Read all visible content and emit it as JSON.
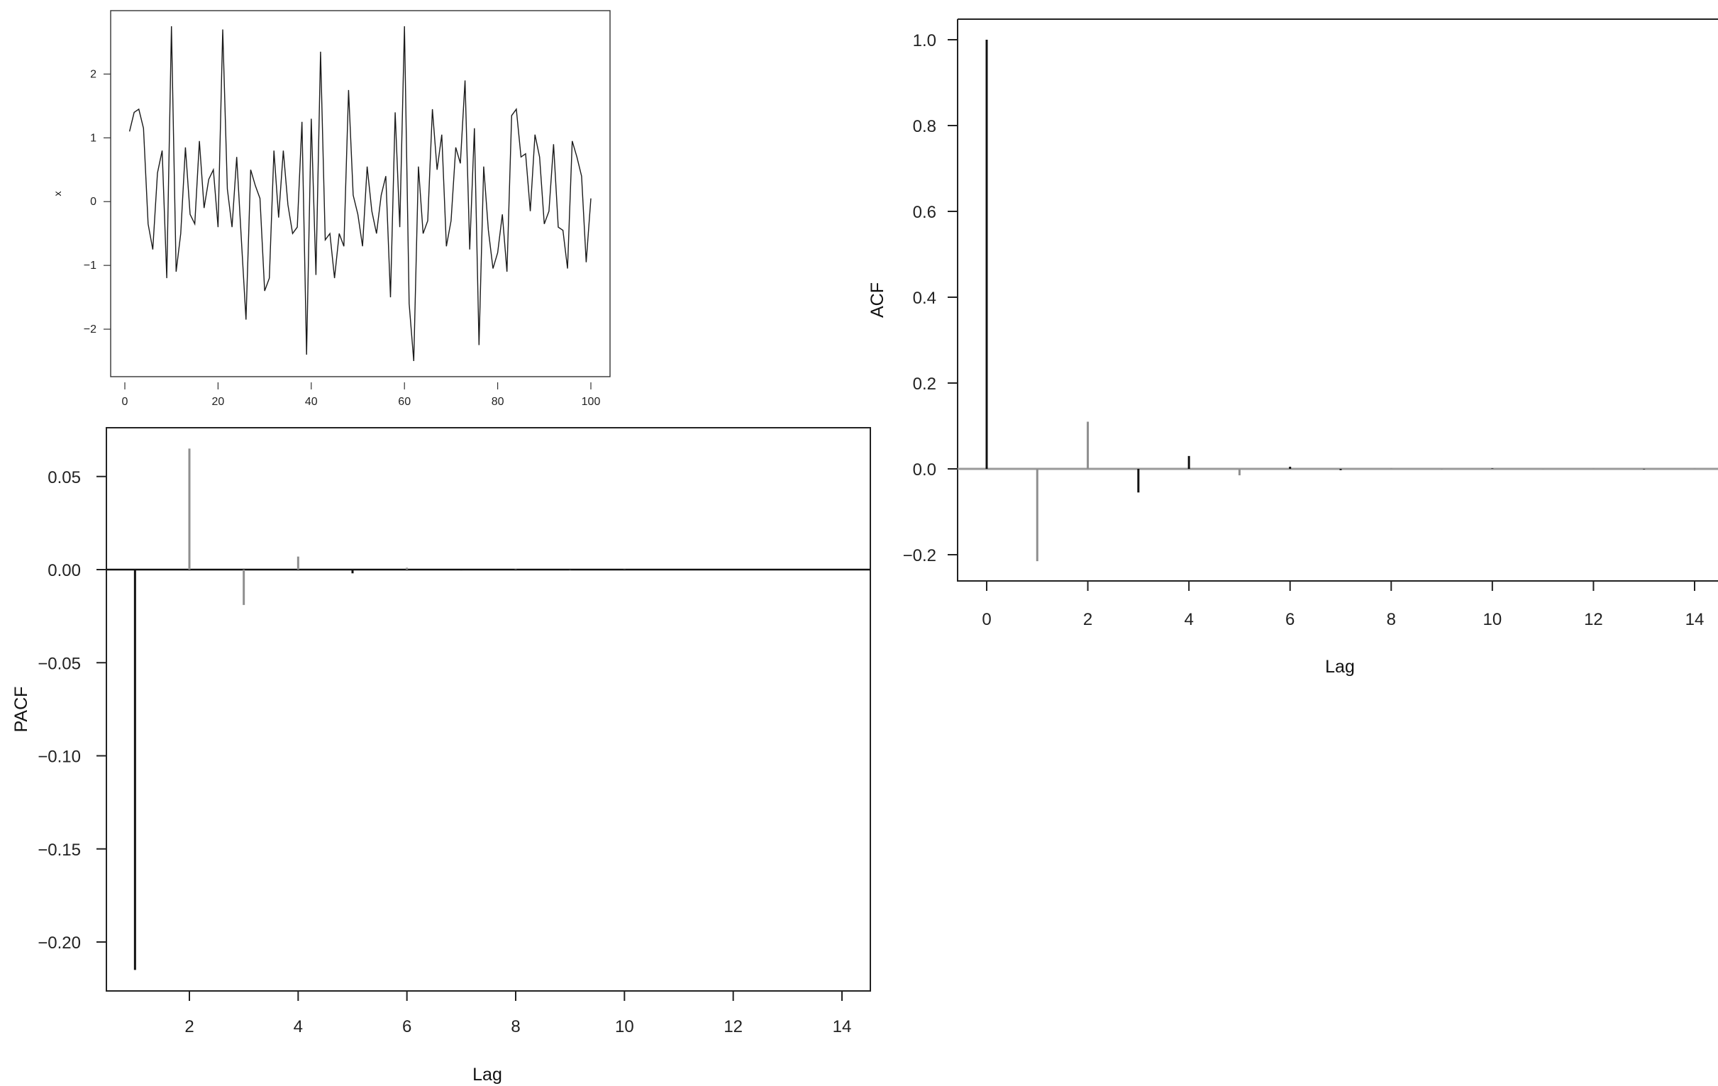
{
  "chart_data": [
    {
      "id": "series",
      "type": "line",
      "title": "",
      "xlabel": "",
      "ylabel": "x",
      "xlim": [
        0,
        100
      ],
      "ylim": [
        -2.7,
        2.95
      ],
      "xticks": [
        0,
        20,
        40,
        60,
        80,
        100
      ],
      "yticks": [
        -2,
        -1,
        0,
        1,
        2
      ],
      "grid": false,
      "line_color": "#1a1a1a",
      "x": [
        1,
        2,
        3,
        4,
        5,
        6,
        7,
        8,
        9,
        10,
        11,
        12,
        13,
        14,
        15,
        16,
        17,
        18,
        19,
        20,
        21,
        22,
        23,
        24,
        25,
        26,
        27,
        28,
        29,
        30,
        31,
        32,
        33,
        34,
        35,
        36,
        37,
        38,
        39,
        40,
        41,
        42,
        43,
        44,
        45,
        46,
        47,
        48,
        49,
        50,
        51,
        52,
        53,
        54,
        55,
        56,
        57,
        58,
        59,
        60,
        61,
        62,
        63,
        64,
        65,
        66,
        67,
        68,
        69,
        70,
        71,
        72,
        73,
        74,
        75,
        76,
        77,
        78,
        79,
        80,
        81,
        82,
        83,
        84,
        85,
        86,
        87,
        88,
        89,
        90,
        91,
        92,
        93,
        94,
        95,
        96,
        97,
        98,
        99,
        100
      ],
      "values": [
        1.1,
        1.4,
        1.45,
        1.15,
        -0.35,
        -0.75,
        0.45,
        0.8,
        -1.2,
        2.75,
        -1.1,
        -0.5,
        0.85,
        -0.2,
        -0.35,
        0.95,
        -0.1,
        0.35,
        0.5,
        -0.4,
        2.7,
        0.2,
        -0.4,
        0.7,
        -0.6,
        -1.85,
        0.5,
        0.25,
        0.05,
        -1.4,
        -1.2,
        0.8,
        -0.25,
        0.8,
        -0.05,
        -0.5,
        -0.4,
        1.25,
        -2.4,
        1.3,
        -1.15,
        2.35,
        -0.6,
        -0.5,
        -1.2,
        -0.5,
        -0.7,
        1.75,
        0.1,
        -0.2,
        -0.7,
        0.55,
        -0.15,
        -0.5,
        0.1,
        0.4,
        -1.5,
        1.4,
        -0.4,
        2.75,
        -1.6,
        -2.5,
        0.55,
        -0.5,
        -0.3,
        1.45,
        0.5,
        1.05,
        -0.7,
        -0.3,
        0.85,
        0.6,
        1.9,
        -0.75,
        1.15,
        -2.25,
        0.55,
        -0.45,
        -1.05,
        -0.8,
        -0.2,
        -1.1,
        1.35,
        1.45,
        0.7,
        0.75,
        -0.15,
        1.05,
        0.7,
        -0.35,
        -0.15,
        0.9,
        -0.4,
        -0.45,
        -1.05,
        0.95,
        0.7,
        0.4,
        -0.95,
        0.05
      ]
    },
    {
      "id": "acf",
      "type": "bar",
      "title": "",
      "xlabel": "Lag",
      "ylabel": "ACF",
      "xlim": [
        -0.55,
        14.3
      ],
      "ylim": [
        -0.26,
        1.05
      ],
      "xticks": [
        0,
        2,
        4,
        6,
        8,
        10,
        12,
        14
      ],
      "yticks": [
        -0.2,
        0.0,
        0.2,
        0.4,
        0.6,
        0.8,
        1.0
      ],
      "ytick_labels": [
        "−0.2",
        "0.0",
        "0.2",
        "0.4",
        "0.6",
        "0.8",
        "1.0"
      ],
      "grid": false,
      "baseline_color": "#9a9a9a",
      "lags": [
        0,
        1,
        2,
        3,
        4,
        5,
        6,
        7,
        8,
        9,
        10,
        11,
        12,
        13,
        14
      ],
      "values": [
        1.0,
        -0.215,
        0.11,
        -0.055,
        0.03,
        -0.015,
        0.005,
        -0.003,
        0.002,
        -0.002,
        0.001,
        -0.001,
        0.001,
        -0.001,
        0.001
      ],
      "colors": [
        "#111111",
        "#8f8f8f",
        "#8f8f8f",
        "#111111",
        "#111111",
        "#8f8f8f",
        "#111111",
        "#111111",
        "#8f8f8f",
        "#8f8f8f",
        "#111111",
        "#8f8f8f",
        "#8f8f8f",
        "#111111",
        "#8f8f8f"
      ]
    },
    {
      "id": "pacf",
      "type": "bar",
      "title": "",
      "xlabel": "Lag",
      "ylabel": "PACF",
      "xlim": [
        0.5,
        15.05
      ],
      "ylim": [
        -0.227,
        0.077
      ],
      "xticks": [
        2,
        4,
        6,
        8,
        10,
        12,
        14
      ],
      "yticks": [
        0.05,
        0.0,
        -0.05,
        -0.1,
        -0.15,
        -0.2
      ],
      "ytick_labels": [
        "0.05",
        "0.00",
        "−0.05",
        "−0.10",
        "−0.15",
        "−0.20"
      ],
      "grid": false,
      "baseline_color": "#111111",
      "lags": [
        1,
        2,
        3,
        4,
        5,
        6,
        7,
        8,
        9,
        10,
        11,
        12,
        13,
        14
      ],
      "values": [
        -0.215,
        0.065,
        -0.019,
        0.007,
        -0.002,
        0.001,
        -0.0004,
        0.0002,
        -0.0001,
        0.0001,
        0,
        0,
        0,
        0
      ],
      "colors": [
        "#111111",
        "#8f8f8f",
        "#8f8f8f",
        "#8f8f8f",
        "#111111",
        "#8f8f8f",
        "#111111",
        "#8f8f8f",
        "#8f8f8f",
        "#8f8f8f",
        "#8f8f8f",
        "#8f8f8f",
        "#8f8f8f",
        "#8f8f8f"
      ]
    }
  ]
}
